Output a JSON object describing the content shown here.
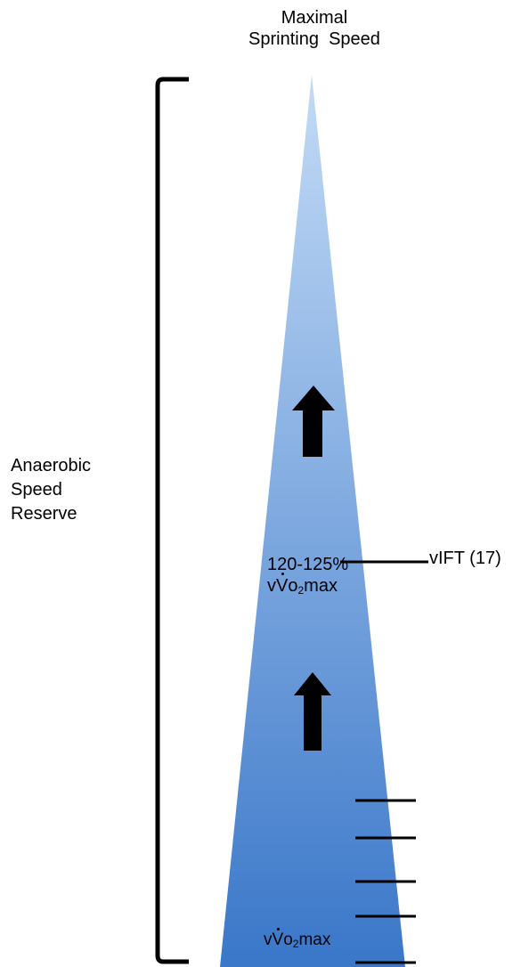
{
  "title": {
    "line1": "Maximal",
    "line2": "Sprinting  Speed"
  },
  "bracket_label": {
    "line1": "Anaerobic",
    "line2": "Speed",
    "line3": "Reserve"
  },
  "intensity_label": {
    "line1": "120-125%",
    "prefix": "v",
    "v": "V",
    "o": "o",
    "sub": "2",
    "suffix": "max"
  },
  "vift_label": "vIFT (17)",
  "bottom_label": {
    "prefix": "v",
    "v": "V",
    "o": "o",
    "sub": "2",
    "suffix": "max"
  },
  "colors": {
    "wedge_top": "#c3dbf6",
    "wedge_bottom": "#3a77c9",
    "ink": "#000000"
  }
}
